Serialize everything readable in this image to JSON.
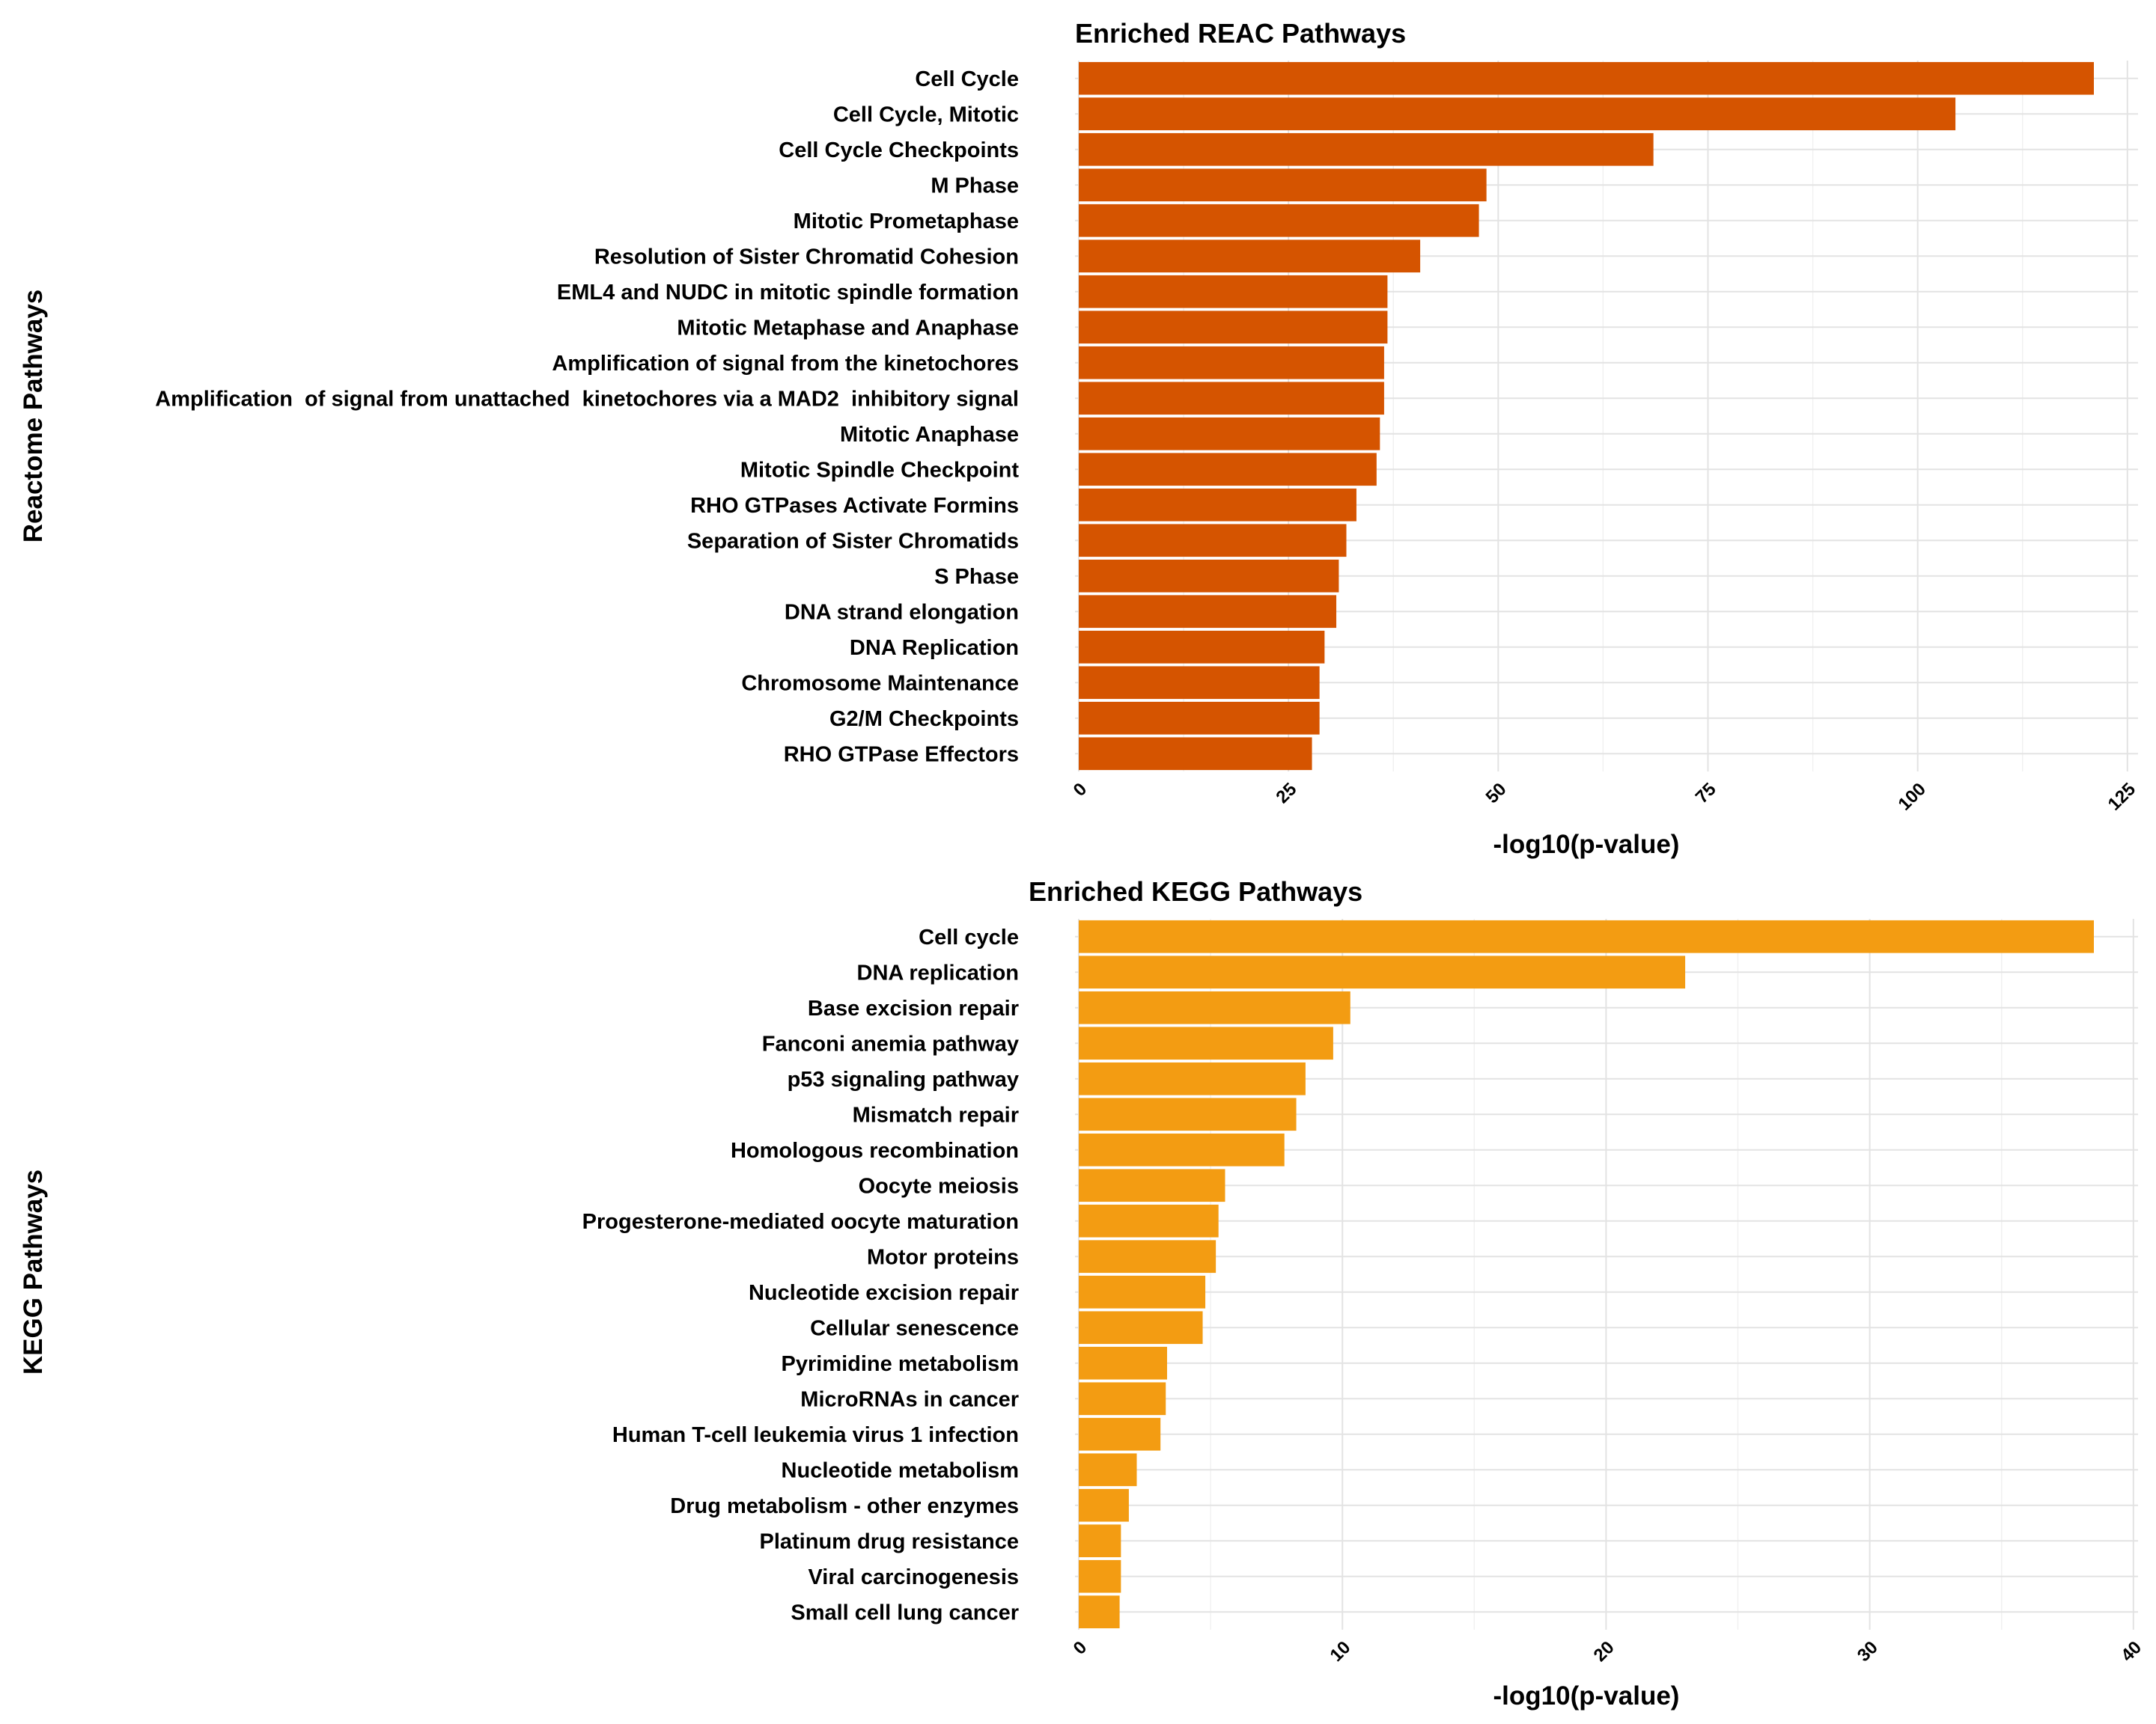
{
  "chart_data": [
    {
      "type": "bar",
      "orientation": "horizontal",
      "title": "Enriched REAC Pathways",
      "xlabel": "-log10(p-value)",
      "ylabel": "Reactome Pathways",
      "xlim": [
        0,
        127
      ],
      "xticks": [
        0,
        25,
        50,
        75,
        100,
        125
      ],
      "grid": true,
      "legend": "none",
      "color": "#D55400",
      "categories": [
        "Cell Cycle",
        "Cell Cycle, Mitotic",
        "Cell Cycle Checkpoints",
        "M Phase",
        "Mitotic Prometaphase",
        "Resolution of Sister Chromatid Cohesion",
        "EML4 and NUDC in mitotic spindle formation",
        "Mitotic Metaphase and Anaphase",
        "Amplification of signal from the kinetochores",
        "Amplification  of signal from unattached  kinetochores via a MAD2  inhibitory signal",
        "Mitotic Anaphase",
        "Mitotic Spindle Checkpoint",
        "RHO GTPases Activate Formins",
        "Separation of Sister Chromatids",
        "S Phase",
        "DNA strand elongation",
        "DNA Replication",
        "Chromosome Maintenance",
        "G2/M Checkpoints",
        "RHO GTPase Effectors"
      ],
      "values": [
        121,
        104.5,
        68.5,
        48.6,
        47.7,
        40.7,
        36.8,
        36.8,
        36.4,
        36.4,
        35.9,
        35.5,
        33.1,
        31.9,
        31.0,
        30.7,
        29.3,
        28.7,
        28.7,
        27.8
      ]
    },
    {
      "type": "bar",
      "orientation": "horizontal",
      "title": "Enriched KEGG Pathways",
      "xlabel": "-log10(p-value)",
      "ylabel": "KEGG Pathways",
      "xlim": [
        0,
        40.5
      ],
      "xticks": [
        0,
        10,
        20,
        30,
        40
      ],
      "grid": true,
      "legend": "none",
      "color": "#F39C12",
      "categories": [
        "Cell cycle",
        "DNA replication",
        "Base excision repair",
        "Fanconi anemia pathway",
        "p53 signaling pathway",
        "Mismatch repair",
        "Homologous recombination",
        "Oocyte meiosis",
        "Progesterone-mediated oocyte maturation",
        "Motor proteins",
        "Nucleotide excision repair",
        "Cellular senescence",
        "Pyrimidine metabolism",
        "MicroRNAs in cancer",
        "Human T-cell leukemia virus 1 infection",
        "Nucleotide metabolism",
        "Drug metabolism - other enzymes",
        "Platinum drug resistance",
        "Viral carcinogenesis",
        "Small cell lung cancer"
      ],
      "values": [
        38.5,
        23.0,
        10.3,
        9.65,
        8.6,
        8.25,
        7.8,
        5.55,
        5.3,
        5.2,
        4.8,
        4.7,
        3.35,
        3.3,
        3.1,
        2.2,
        1.9,
        1.6,
        1.6,
        1.55
      ]
    }
  ]
}
